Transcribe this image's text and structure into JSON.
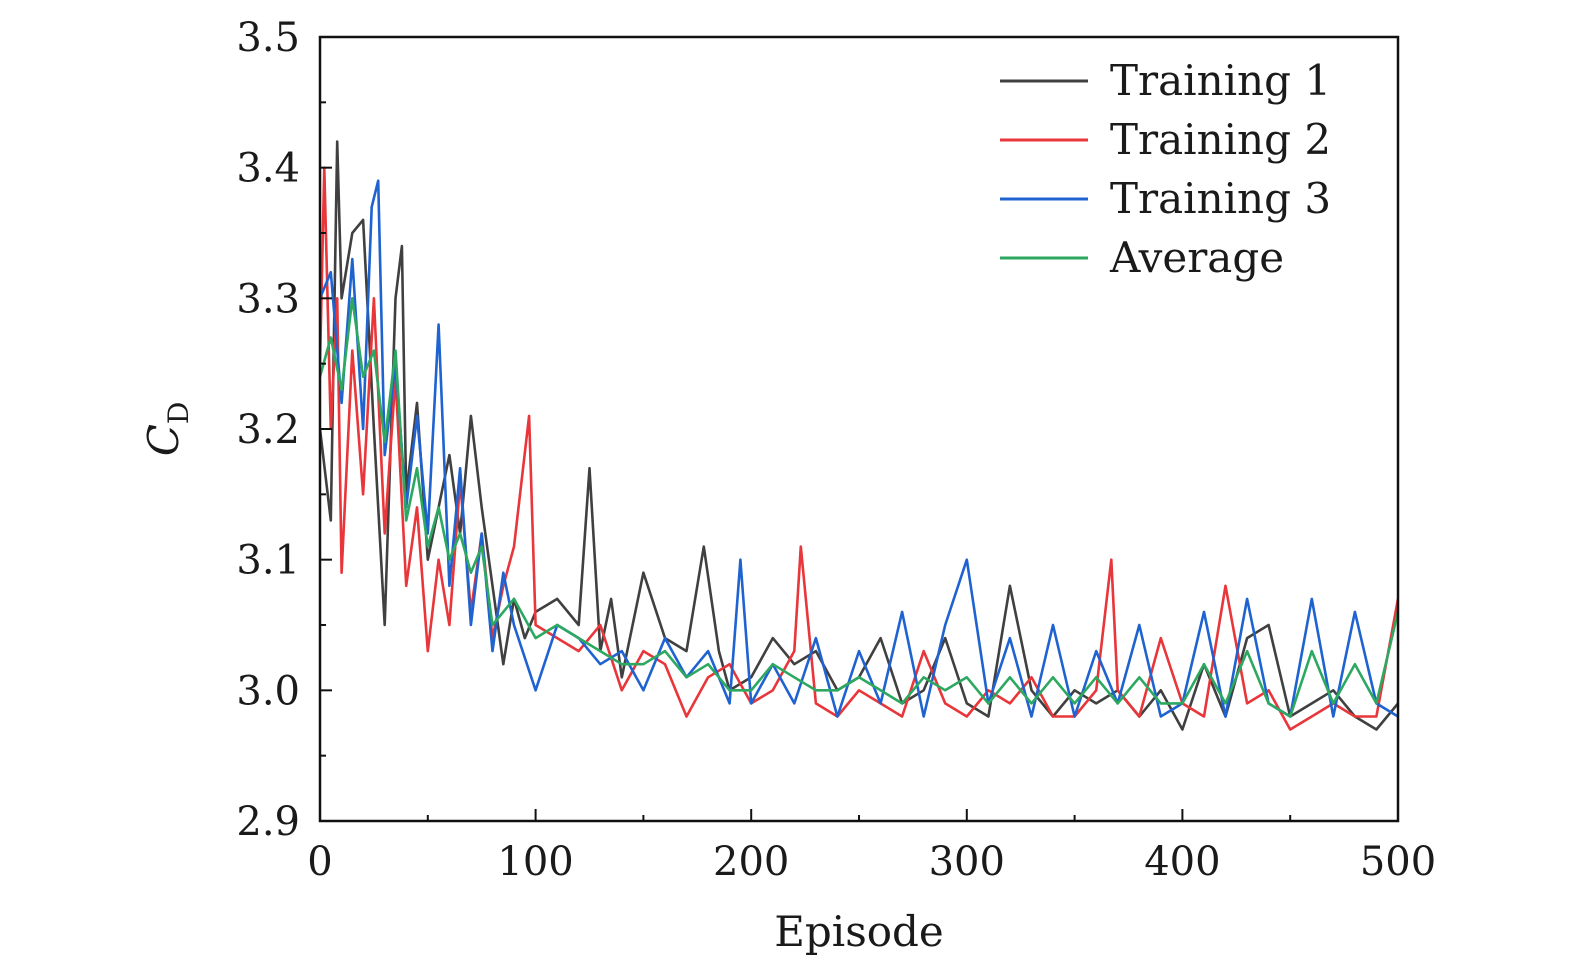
{
  "chart_data": {
    "type": "line",
    "xlabel": "Episode",
    "ylabel_main": "C",
    "ylabel_sub": "D",
    "xlim": [
      0,
      500
    ],
    "ylim": [
      2.9,
      3.5
    ],
    "xticks": [
      "0",
      "100",
      "200",
      "300",
      "400",
      "500"
    ],
    "yticks": [
      "2.9",
      "3.0",
      "3.1",
      "3.2",
      "3.3",
      "3.4",
      "3.5"
    ],
    "grid": false,
    "legend_position": "top-right",
    "series": [
      {
        "name": "Training 1",
        "color": "#404040",
        "x": [
          0,
          5,
          8,
          10,
          15,
          20,
          25,
          30,
          35,
          38,
          40,
          45,
          50,
          55,
          60,
          65,
          70,
          75,
          80,
          85,
          90,
          95,
          100,
          110,
          120,
          125,
          130,
          135,
          140,
          150,
          160,
          170,
          178,
          185,
          190,
          200,
          210,
          220,
          230,
          240,
          250,
          260,
          270,
          280,
          290,
          300,
          310,
          320,
          330,
          340,
          350,
          360,
          370,
          380,
          390,
          400,
          410,
          420,
          430,
          440,
          450,
          460,
          470,
          480,
          490,
          500
        ],
        "y": [
          3.2,
          3.13,
          3.42,
          3.3,
          3.35,
          3.36,
          3.2,
          3.05,
          3.3,
          3.34,
          3.15,
          3.22,
          3.1,
          3.14,
          3.18,
          3.12,
          3.21,
          3.14,
          3.08,
          3.02,
          3.07,
          3.04,
          3.06,
          3.07,
          3.05,
          3.17,
          3.03,
          3.07,
          3.01,
          3.09,
          3.04,
          3.03,
          3.11,
          3.03,
          3.0,
          3.01,
          3.04,
          3.02,
          3.03,
          3.0,
          3.01,
          3.04,
          2.99,
          3.0,
          3.04,
          2.99,
          2.98,
          3.08,
          3.0,
          2.98,
          3.0,
          2.99,
          3.0,
          2.98,
          3.0,
          2.97,
          3.02,
          2.98,
          3.04,
          3.05,
          2.98,
          2.99,
          3.0,
          2.98,
          2.97,
          2.99
        ]
      },
      {
        "name": "Training 2",
        "color": "#e8363a",
        "x": [
          0,
          2,
          5,
          8,
          10,
          15,
          20,
          25,
          30,
          35,
          40,
          45,
          50,
          55,
          60,
          65,
          70,
          75,
          80,
          85,
          90,
          97,
          100,
          110,
          120,
          130,
          140,
          150,
          160,
          170,
          180,
          190,
          200,
          210,
          220,
          223,
          230,
          240,
          250,
          260,
          270,
          280,
          290,
          300,
          310,
          320,
          330,
          340,
          350,
          360,
          367,
          370,
          380,
          390,
          400,
          410,
          420,
          430,
          440,
          450,
          460,
          470,
          480,
          490,
          500
        ],
        "y": [
          3.25,
          3.4,
          3.2,
          3.3,
          3.09,
          3.26,
          3.15,
          3.3,
          3.12,
          3.24,
          3.08,
          3.14,
          3.03,
          3.1,
          3.05,
          3.16,
          3.06,
          3.12,
          3.04,
          3.08,
          3.11,
          3.21,
          3.05,
          3.04,
          3.03,
          3.05,
          3.0,
          3.03,
          3.02,
          2.98,
          3.01,
          3.02,
          2.99,
          3.0,
          3.03,
          3.11,
          2.99,
          2.98,
          3.0,
          2.99,
          2.98,
          3.03,
          2.99,
          2.98,
          3.0,
          2.99,
          3.01,
          2.98,
          2.98,
          3.0,
          3.1,
          3.0,
          2.98,
          3.04,
          2.99,
          2.98,
          3.08,
          2.99,
          3.0,
          2.97,
          2.98,
          2.99,
          2.98,
          2.98,
          3.07
        ]
      },
      {
        "name": "Training 3",
        "color": "#1f63d1",
        "x": [
          0,
          5,
          10,
          15,
          20,
          24,
          27,
          30,
          35,
          40,
          45,
          50,
          55,
          60,
          65,
          70,
          75,
          80,
          85,
          90,
          100,
          110,
          120,
          130,
          140,
          150,
          160,
          170,
          180,
          190,
          195,
          200,
          210,
          220,
          230,
          240,
          250,
          260,
          270,
          280,
          290,
          300,
          310,
          320,
          330,
          340,
          350,
          360,
          370,
          380,
          390,
          400,
          410,
          420,
          430,
          440,
          450,
          460,
          470,
          480,
          490,
          500
        ],
        "y": [
          3.3,
          3.32,
          3.22,
          3.33,
          3.2,
          3.37,
          3.39,
          3.18,
          3.25,
          3.14,
          3.21,
          3.12,
          3.28,
          3.08,
          3.17,
          3.05,
          3.12,
          3.03,
          3.09,
          3.05,
          3.0,
          3.05,
          3.04,
          3.02,
          3.03,
          3.0,
          3.04,
          3.01,
          3.03,
          2.99,
          3.1,
          2.99,
          3.02,
          2.99,
          3.04,
          2.98,
          3.03,
          2.99,
          3.06,
          2.98,
          3.05,
          3.1,
          2.99,
          3.04,
          2.98,
          3.05,
          2.98,
          3.03,
          2.99,
          3.05,
          2.98,
          2.99,
          3.06,
          2.98,
          3.07,
          2.99,
          2.98,
          3.07,
          2.98,
          3.06,
          2.99,
          2.98
        ]
      },
      {
        "name": "Average",
        "color": "#2ca860",
        "x": [
          0,
          5,
          10,
          15,
          20,
          25,
          30,
          35,
          40,
          45,
          50,
          55,
          60,
          65,
          70,
          75,
          80,
          85,
          90,
          100,
          110,
          120,
          130,
          140,
          150,
          160,
          170,
          180,
          190,
          200,
          210,
          220,
          230,
          240,
          250,
          260,
          270,
          280,
          290,
          300,
          310,
          320,
          330,
          340,
          350,
          360,
          370,
          380,
          390,
          400,
          410,
          420,
          430,
          440,
          450,
          460,
          470,
          480,
          490,
          500
        ],
        "y": [
          3.24,
          3.27,
          3.23,
          3.3,
          3.24,
          3.26,
          3.19,
          3.26,
          3.13,
          3.17,
          3.11,
          3.14,
          3.1,
          3.12,
          3.09,
          3.11,
          3.05,
          3.06,
          3.07,
          3.04,
          3.05,
          3.04,
          3.03,
          3.02,
          3.02,
          3.03,
          3.01,
          3.02,
          3.0,
          3.0,
          3.02,
          3.01,
          3.0,
          3.0,
          3.01,
          3.0,
          2.99,
          3.01,
          3.0,
          3.01,
          2.99,
          3.01,
          2.99,
          3.01,
          2.99,
          3.01,
          2.99,
          3.01,
          2.99,
          2.99,
          3.02,
          2.99,
          3.03,
          2.99,
          2.98,
          3.03,
          2.99,
          3.02,
          2.99,
          3.06
        ]
      }
    ]
  }
}
